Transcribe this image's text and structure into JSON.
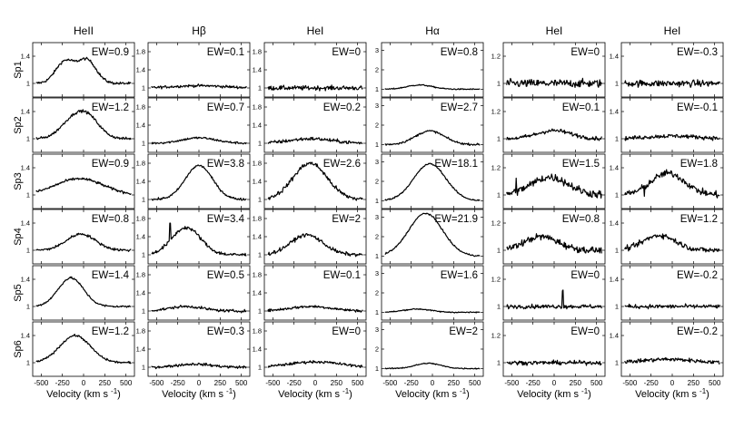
{
  "chart_data": {
    "type": "line",
    "columns": [
      {
        "title": "HeII",
        "yticks": [
          "1",
          "1.4"
        ],
        "ylim": [
          0.8,
          1.6
        ]
      },
      {
        "title": "Hβ",
        "yticks": [
          "1",
          "1.4",
          "1.8"
        ],
        "ylim": [
          0.8,
          2.0
        ]
      },
      {
        "title": "HeI",
        "yticks": [
          "1",
          "1.4",
          "1.8"
        ],
        "ylim": [
          0.8,
          2.0
        ]
      },
      {
        "title": "Hα",
        "yticks": [
          "1",
          "2",
          "3"
        ],
        "ylim": [
          0.6,
          3.4
        ]
      },
      {
        "title": "HeI",
        "yticks": [
          "1",
          "1.2"
        ],
        "ylim": [
          0.9,
          1.3
        ]
      },
      {
        "title": "HeI",
        "yticks": [
          "1",
          "1.4"
        ],
        "ylim": [
          0.8,
          1.6
        ]
      }
    ],
    "rows": [
      "Sp1",
      "Sp2",
      "Sp3",
      "Sp4",
      "Sp5",
      "Sp6"
    ],
    "x_ticks": [
      "-500",
      "-250",
      "0",
      "250",
      "500"
    ],
    "xlim": [
      -600,
      600
    ],
    "xlabel": "Velocity (km s",
    "xlabel_sup": "-1",
    "xlabel_end": ")",
    "ew": [
      [
        "EW=0.9",
        "EW=0.1",
        "EW=0",
        "EW=0.8",
        "EW=0",
        "EW=-0.3"
      ],
      [
        "EW=1.2",
        "EW=0.7",
        "EW=0.2",
        "EW=2.7",
        "EW=0.1",
        "EW=-0.1"
      ],
      [
        "EW=0.9",
        "EW=3.8",
        "EW=2.6",
        "EW=18.1",
        "EW=1.5",
        "EW=1.8"
      ],
      [
        "EW=0.8",
        "EW=3.4",
        "EW=2",
        "EW=21.9",
        "EW=0.8",
        "EW=1.2"
      ],
      [
        "EW=1.4",
        "EW=0.5",
        "EW=0.1",
        "EW=1.6",
        "EW=0",
        "EW=-0.2"
      ],
      [
        "EW=1.2",
        "EW=0.3",
        "EW=0",
        "EW=2",
        "EW=0",
        "EW=-0.2"
      ]
    ],
    "profiles": [
      [
        {
          "peaks": [
            [
              -220,
              0.32,
              110
            ],
            [
              40,
              0.34,
              110
            ]
          ],
          "noise": 0.02,
          "spike": null
        },
        {
          "peaks": [
            [
              0,
              0.05,
              300
            ]
          ],
          "noise": 0.03,
          "spike": null
        },
        {
          "peaks": [],
          "noise": 0.05,
          "spike": null
        },
        {
          "peaks": [
            [
              -150,
              0.22,
              150
            ]
          ],
          "noise": 0.03,
          "spike": null
        },
        {
          "peaks": [],
          "noise": 0.03,
          "spike": null
        },
        {
          "peaks": [],
          "noise": 0.05,
          "spike": null
        }
      ],
      [
        {
          "peaks": [
            [
              -150,
              0.22,
              140
            ],
            [
              50,
              0.3,
              140
            ]
          ],
          "noise": 0.02,
          "spike": null
        },
        {
          "peaks": [
            [
              0,
              0.12,
              200
            ]
          ],
          "noise": 0.025,
          "spike": null
        },
        {
          "peaks": [
            [
              -50,
              0.1,
              250
            ]
          ],
          "noise": 0.04,
          "spike": null
        },
        {
          "peaks": [
            [
              -30,
              0.7,
              170
            ]
          ],
          "noise": 0.05,
          "spike": null
        },
        {
          "peaks": [
            [
              0,
              0.06,
              200
            ]
          ],
          "noise": 0.015,
          "spike": null
        },
        {
          "peaks": [
            [
              0,
              0.04,
              300
            ]
          ],
          "noise": 0.03,
          "spike": [
            570,
            0.12
          ]
        }
      ],
      [
        {
          "peaks": [
            [
              -50,
              0.24,
              280
            ]
          ],
          "noise": 0.02,
          "spike": null
        },
        {
          "peaks": [
            [
              0,
              0.75,
              160
            ]
          ],
          "noise": 0.025,
          "spike": null
        },
        {
          "peaks": [
            [
              -60,
              0.8,
              200
            ]
          ],
          "noise": 0.05,
          "spike": null
        },
        {
          "peaks": [
            [
              -30,
              1.9,
              190
            ]
          ],
          "noise": 0.04,
          "spike": null
        },
        {
          "peaks": [
            [
              -50,
              0.13,
              220
            ]
          ],
          "noise": 0.03,
          "spike": [
            -450,
            0.12
          ]
        },
        {
          "peaks": [
            [
              -50,
              0.32,
              200
            ]
          ],
          "noise": 0.05,
          "spike": [
            -330,
            -0.15
          ]
        }
      ],
      [
        {
          "peaks": [
            [
              -30,
              0.24,
              170
            ]
          ],
          "noise": 0.02,
          "spike": null
        },
        {
          "peaks": [
            [
              -150,
              0.6,
              170
            ]
          ],
          "noise": 0.04,
          "spike": [
            -340,
            0.35
          ]
        },
        {
          "peaks": [
            [
              -100,
              0.44,
              190
            ]
          ],
          "noise": 0.04,
          "spike": null
        },
        {
          "peaks": [
            [
              -80,
              2.2,
              200
            ]
          ],
          "noise": 0.04,
          "spike": null
        },
        {
          "peaks": [
            [
              -150,
              0.1,
              200
            ]
          ],
          "noise": 0.025,
          "spike": null
        },
        {
          "peaks": [
            [
              -150,
              0.22,
              190
            ]
          ],
          "noise": 0.04,
          "spike": null
        }
      ],
      [
        {
          "peaks": [
            [
              -150,
              0.42,
              150
            ]
          ],
          "noise": 0.015,
          "spike": null
        },
        {
          "peaks": [
            [
              -150,
              0.1,
              200
            ]
          ],
          "noise": 0.03,
          "spike": null
        },
        {
          "peaks": [
            [
              -50,
              0.1,
              250
            ]
          ],
          "noise": 0.03,
          "spike": null
        },
        {
          "peaks": [
            [
              -180,
              0.17,
              160
            ]
          ],
          "noise": 0.03,
          "spike": null
        },
        {
          "peaks": [],
          "noise": 0.015,
          "spike": [
            100,
            0.12
          ]
        },
        {
          "peaks": [],
          "noise": 0.03,
          "spike": [
            580,
            -0.12
          ]
        }
      ],
      [
        {
          "peaks": [
            [
              -100,
              0.4,
              180
            ]
          ],
          "noise": 0.015,
          "spike": null
        },
        {
          "peaks": [
            [
              -50,
              0.07,
              200
            ]
          ],
          "noise": 0.03,
          "spike": null
        },
        {
          "peaks": [
            [
              0,
              0.12,
              300
            ]
          ],
          "noise": 0.03,
          "spike": null
        },
        {
          "peaks": [
            [
              -50,
              0.27,
              150
            ]
          ],
          "noise": 0.03,
          "spike": null
        },
        {
          "peaks": [],
          "noise": 0.015,
          "spike": null
        },
        {
          "peaks": [
            [
              -50,
              0.05,
              300
            ]
          ],
          "noise": 0.03,
          "spike": null
        }
      ]
    ]
  }
}
